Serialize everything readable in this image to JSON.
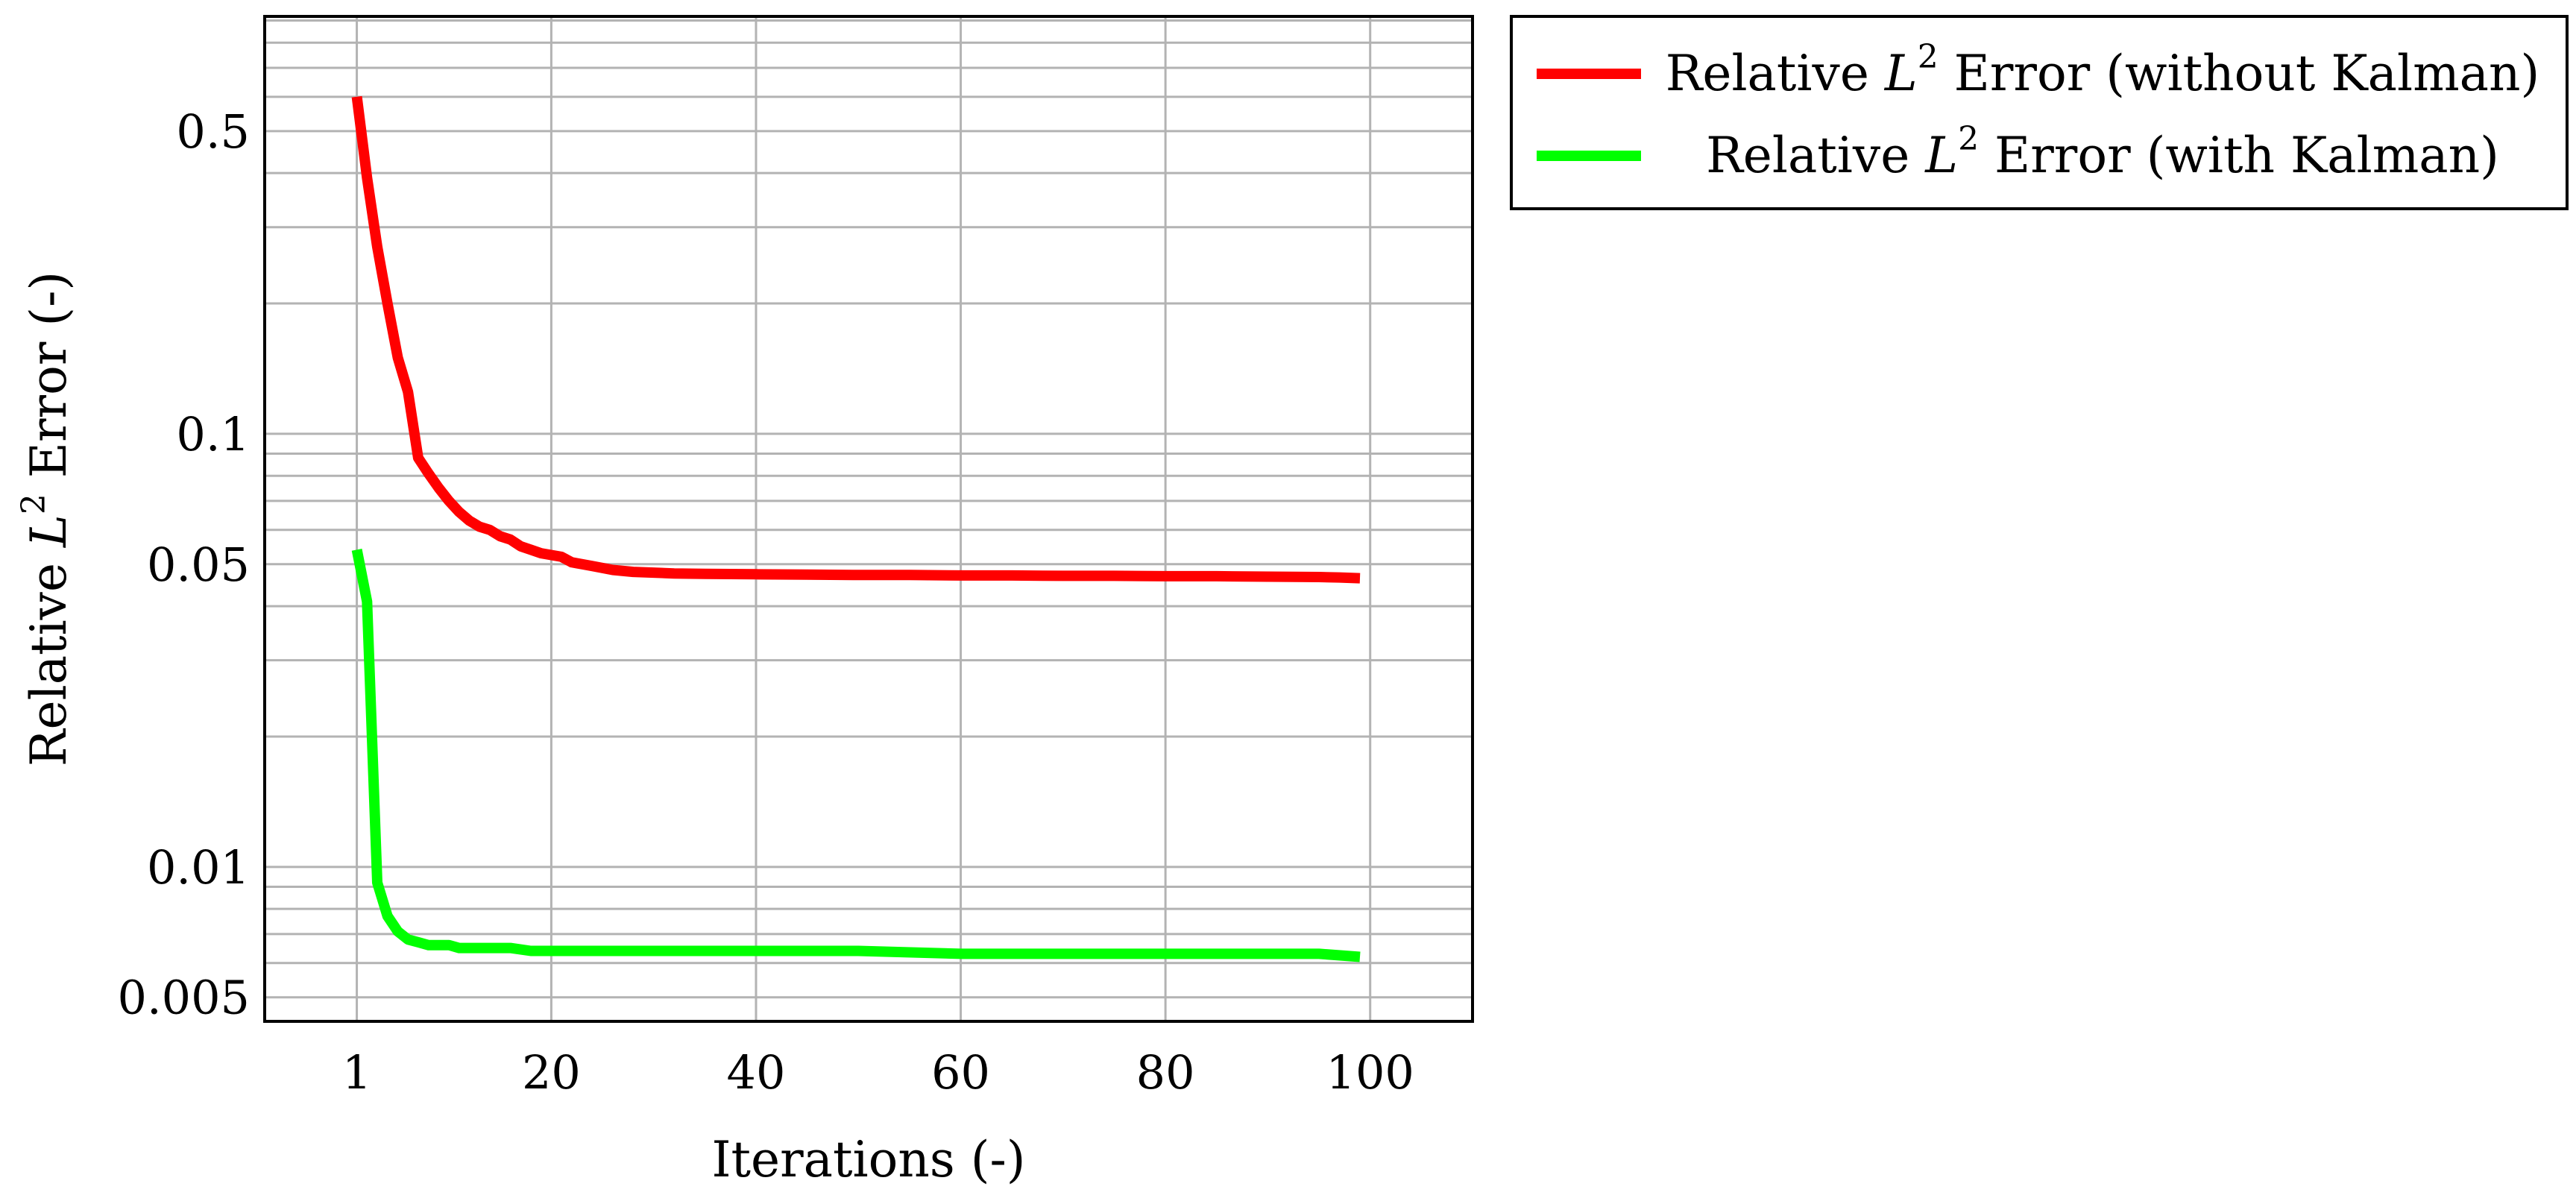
{
  "chart_data": {
    "type": "line",
    "xlabel": "Iterations (-)",
    "ylabel": "Relative L² Error (-)",
    "ylabel_parts": {
      "pre": "Relative ",
      "sym": "L",
      "sup": "2",
      "post": " Error (-)"
    },
    "x_ticks": [
      {
        "value": 1,
        "label": "1"
      },
      {
        "value": 20,
        "label": "20"
      },
      {
        "value": 40,
        "label": "40"
      },
      {
        "value": 60,
        "label": "60"
      },
      {
        "value": 80,
        "label": "80"
      },
      {
        "value": 100,
        "label": "100"
      }
    ],
    "y_ticks": [
      {
        "value": 0.5,
        "label": "0.5"
      },
      {
        "value": 0.1,
        "label": "0.1"
      },
      {
        "value": 0.05,
        "label": "0.05"
      },
      {
        "value": 0.01,
        "label": "0.01"
      },
      {
        "value": 0.005,
        "label": "0.005"
      }
    ],
    "xlim": [
      -8,
      110
    ],
    "ylim": [
      0.0044,
      0.92
    ],
    "y_scale": "log",
    "grid": true,
    "legend_position": "outside-top-right",
    "series": [
      {
        "name": "Relative L² Error (without Kalman)",
        "name_parts": {
          "pre": "Relative ",
          "sym": "L",
          "sup": "2",
          "post": " Error (without Kalman)"
        },
        "color": "#ff0000",
        "x": [
          1,
          2,
          3,
          4,
          5,
          6,
          7,
          8,
          9,
          10,
          11,
          12,
          13,
          14,
          15,
          16,
          17,
          18,
          19,
          20,
          21,
          22,
          23,
          24,
          25,
          26,
          28,
          30,
          32,
          35,
          40,
          45,
          50,
          55,
          60,
          65,
          70,
          75,
          80,
          85,
          90,
          95,
          97,
          99
        ],
        "y": [
          0.6,
          0.39,
          0.27,
          0.2,
          0.15,
          0.125,
          0.088,
          0.081,
          0.075,
          0.07,
          0.066,
          0.063,
          0.061,
          0.06,
          0.058,
          0.057,
          0.055,
          0.054,
          0.053,
          0.0525,
          0.052,
          0.0505,
          0.05,
          0.0495,
          0.049,
          0.0485,
          0.048,
          0.0478,
          0.0476,
          0.0475,
          0.0474,
          0.0473,
          0.0472,
          0.0472,
          0.0471,
          0.0471,
          0.047,
          0.047,
          0.0469,
          0.0469,
          0.0468,
          0.0467,
          0.0466,
          0.0464
        ]
      },
      {
        "name": "Relative L² Error (with Kalman)",
        "name_parts": {
          "pre": "Relative ",
          "sym": "L",
          "sup": "2",
          "post": " Error (with Kalman)"
        },
        "color": "#00ff00",
        "x": [
          1,
          2,
          3,
          4,
          5,
          6,
          7,
          8,
          9,
          10,
          11,
          12,
          14,
          16,
          18,
          20,
          25,
          30,
          40,
          50,
          60,
          70,
          80,
          90,
          95,
          99
        ],
        "y": [
          0.054,
          0.041,
          0.0092,
          0.0077,
          0.0071,
          0.0068,
          0.0067,
          0.0066,
          0.0066,
          0.0066,
          0.0065,
          0.0065,
          0.0065,
          0.0065,
          0.0064,
          0.0064,
          0.0064,
          0.0064,
          0.0064,
          0.0064,
          0.0063,
          0.0063,
          0.0063,
          0.0063,
          0.0063,
          0.0062
        ]
      }
    ]
  }
}
